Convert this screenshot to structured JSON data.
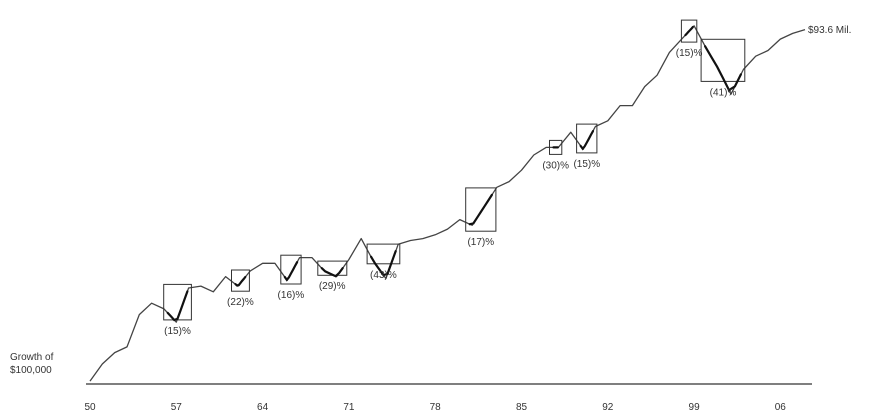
{
  "chart_data": {
    "type": "line",
    "title": "",
    "xlabel": "",
    "ylabel": "",
    "grid": false,
    "x_tick_labels": [
      "50",
      "57",
      "64",
      "71",
      "78",
      "85",
      "92",
      "99",
      "06"
    ],
    "start_label": [
      "Growth of",
      "$100,000"
    ],
    "end_label": "$93.6 Mil.",
    "series": [
      {
        "x": [
          1950,
          1951,
          1952,
          1953,
          1954,
          1955,
          1956,
          1957,
          1958,
          1959,
          1960,
          1961,
          1962,
          1963,
          1964,
          1965,
          1966,
          1967,
          1968,
          1969,
          1970,
          1971,
          1972,
          1973,
          1974,
          1975,
          1976,
          1977,
          1978,
          1979,
          1980,
          1981,
          1982,
          1983,
          1984,
          1985,
          1986,
          1987,
          1988,
          1989,
          1990,
          1991,
          1992,
          1993,
          1994,
          1995,
          1996,
          1997,
          1998,
          1999,
          2000,
          2001,
          2002,
          2003,
          2004,
          2005,
          2006,
          2007,
          2008
        ],
        "y": [
          0.1,
          1.0,
          1.6,
          1.9,
          3.6,
          4.2,
          3.9,
          3.2,
          5.0,
          5.1,
          4.8,
          5.6,
          5.1,
          5.9,
          6.3,
          6.3,
          5.4,
          6.6,
          6.6,
          5.9,
          5.6,
          6.5,
          7.6,
          6.4,
          5.5,
          7.3,
          7.5,
          7.6,
          7.8,
          8.1,
          8.6,
          8.3,
          9.3,
          10.3,
          10.6,
          11.2,
          12.0,
          12.4,
          12.4,
          13.2,
          12.3,
          13.5,
          13.8,
          14.6,
          14.6,
          15.6,
          16.2,
          17.4,
          18.1,
          18.8,
          17.6,
          16.5,
          15.2,
          16.5,
          17.2,
          17.5,
          18.1,
          18.4,
          18.6
        ]
      }
    ],
    "drawdowns": [
      {
        "label": "(15)%",
        "start": 1956.3,
        "end": 1957.9
      },
      {
        "label": "(22)%",
        "start": 1961.8,
        "end": 1962.6
      },
      {
        "label": "(16)%",
        "start": 1965.8,
        "end": 1966.8
      },
      {
        "label": "(29)%",
        "start": 1968.8,
        "end": 1970.5
      },
      {
        "label": "(43)%",
        "start": 1972.8,
        "end": 1974.8
      },
      {
        "label": "(17)%",
        "start": 1980.8,
        "end": 1982.6
      },
      {
        "label": "(30)%",
        "start": 1987.6,
        "end": 1987.95
      },
      {
        "label": "(15)%",
        "start": 1989.8,
        "end": 1990.8
      },
      {
        "label": "(15)%",
        "start": 1998.3,
        "end": 1998.9
      },
      {
        "label": "(41)%",
        "start": 1999.9,
        "end": 2002.8
      }
    ]
  }
}
